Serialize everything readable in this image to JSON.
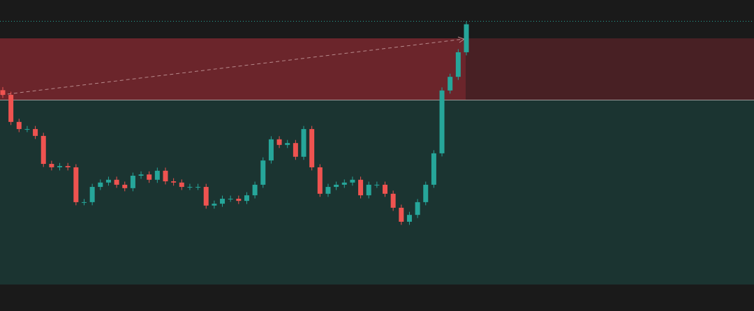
{
  "chart_data": {
    "type": "candlestick",
    "ylim": [
      0,
      100
    ],
    "up_color": "#26a69a",
    "down_color": "#ef5350",
    "open": [
      71.0,
      69.5,
      60.8,
      58.5,
      58.5,
      56.3,
      47.3,
      46.2,
      46.6,
      46.2,
      35.0,
      35.0,
      39.9,
      41.3,
      42.2,
      40.6,
      39.5,
      43.5,
      43.9,
      42.2,
      45.1,
      41.7,
      41.3,
      39.9,
      39.9,
      39.9,
      33.9,
      34.5,
      36.1,
      36.1,
      35.4,
      37.2,
      40.6,
      48.4,
      55.2,
      53.4,
      54.0,
      49.6,
      58.5,
      46.2,
      37.7,
      39.9,
      40.6,
      41.3,
      42.2,
      37.2,
      40.6,
      40.6,
      37.7,
      33.2,
      28.7,
      30.9,
      35.0,
      40.6,
      50.7,
      70.9,
      75.3,
      83.2
    ],
    "high": [
      72.0,
      70.5,
      61.8,
      59.5,
      59.5,
      57.3,
      48.3,
      47.6,
      47.6,
      47.2,
      36.0,
      40.9,
      42.3,
      43.2,
      43.2,
      41.6,
      44.5,
      44.9,
      44.9,
      46.1,
      46.1,
      42.7,
      42.3,
      40.9,
      40.9,
      40.9,
      35.5,
      37.1,
      37.1,
      37.1,
      38.2,
      41.6,
      49.4,
      56.2,
      56.2,
      55.0,
      55.0,
      59.5,
      59.5,
      47.2,
      40.9,
      41.6,
      42.3,
      43.2,
      43.2,
      41.6,
      41.6,
      41.6,
      38.7,
      34.2,
      31.9,
      36.0,
      41.6,
      51.7,
      71.9,
      76.3,
      84.2,
      93.2
    ],
    "low": [
      68.5,
      59.8,
      57.5,
      57.5,
      55.3,
      46.3,
      45.2,
      45.2,
      45.2,
      34.0,
      34.0,
      34.0,
      38.9,
      40.3,
      39.6,
      38.5,
      38.5,
      42.5,
      41.2,
      41.2,
      40.7,
      40.3,
      38.9,
      38.9,
      38.9,
      32.9,
      32.9,
      33.5,
      35.1,
      34.4,
      34.4,
      36.2,
      39.6,
      47.4,
      52.4,
      52.4,
      48.6,
      48.6,
      45.2,
      36.7,
      36.7,
      38.9,
      39.6,
      40.3,
      36.2,
      36.2,
      39.6,
      36.7,
      32.2,
      27.7,
      27.7,
      29.9,
      34.0,
      39.6,
      49.7,
      69.9,
      74.3,
      82.2
    ],
    "close": [
      69.5,
      60.8,
      58.5,
      58.5,
      56.3,
      47.3,
      46.2,
      46.6,
      46.2,
      35.0,
      35.0,
      39.9,
      41.3,
      42.2,
      40.6,
      39.5,
      43.5,
      43.9,
      42.2,
      45.1,
      41.7,
      41.3,
      39.9,
      39.9,
      39.9,
      33.9,
      34.5,
      36.1,
      36.1,
      35.4,
      37.2,
      40.6,
      48.4,
      55.2,
      53.4,
      54.0,
      49.6,
      58.5,
      46.2,
      37.7,
      39.9,
      40.6,
      41.3,
      42.2,
      37.2,
      40.6,
      40.6,
      37.7,
      33.2,
      28.7,
      30.9,
      35.0,
      40.6,
      50.7,
      70.9,
      75.3,
      83.2,
      92.2
    ]
  }
}
